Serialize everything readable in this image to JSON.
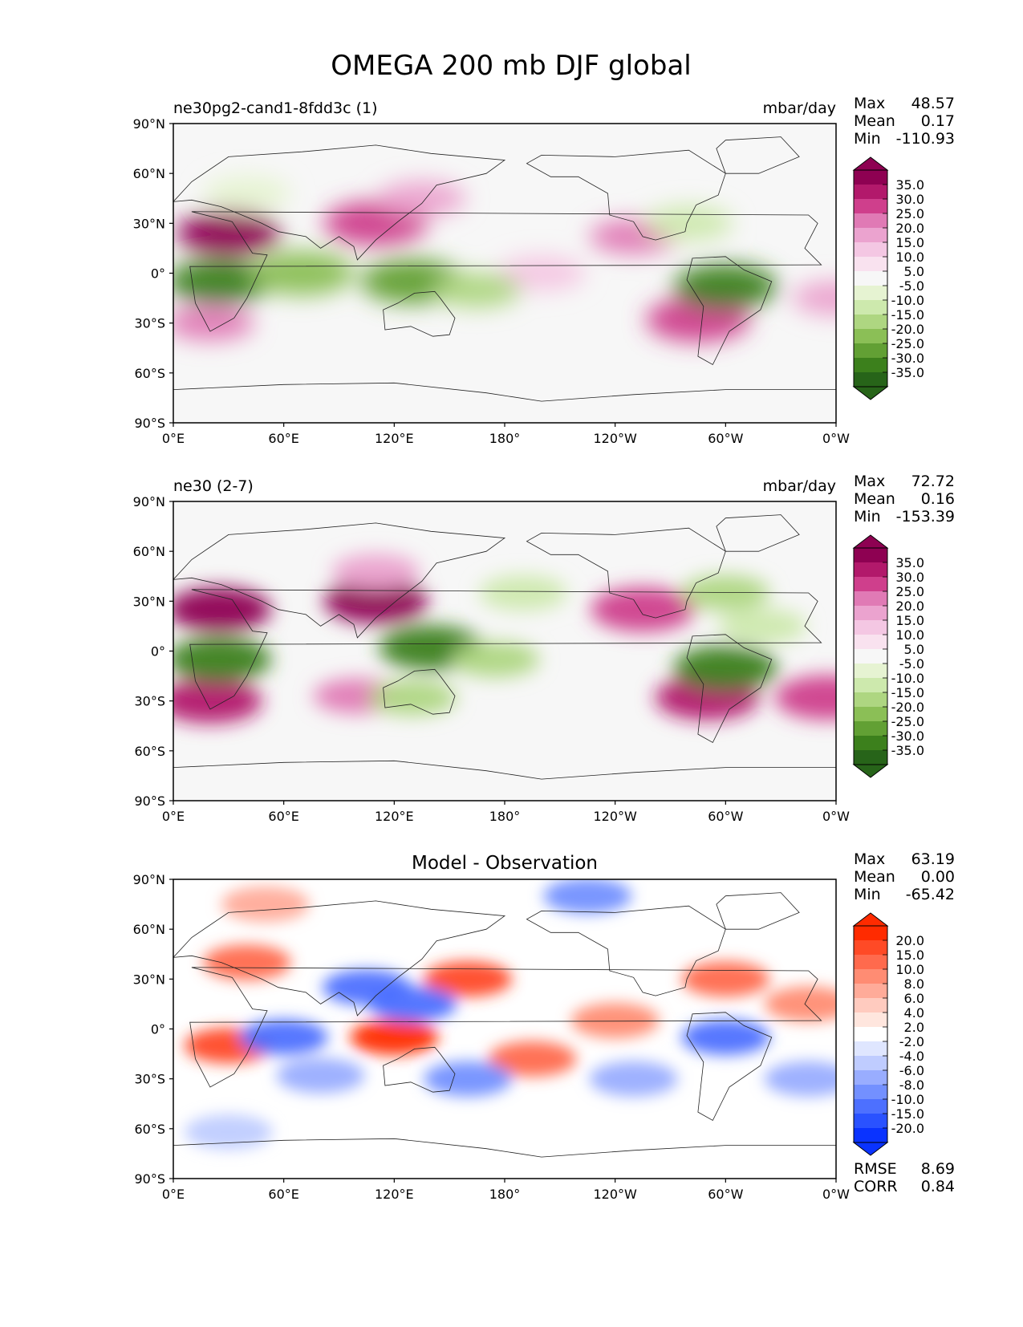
{
  "figure": {
    "title": "OMEGA 200 mb DJF global"
  },
  "chart_data": [
    {
      "type": "heatmap",
      "title": "ne30pg2-cand1-8fdd3c (1)",
      "units": "mbar/day",
      "x_ticks": [
        "0°E",
        "60°E",
        "120°E",
        "180°",
        "120°W",
        "60°W",
        "0°W"
      ],
      "y_ticks": [
        "90°N",
        "60°N",
        "30°N",
        "0°",
        "30°S",
        "60°S",
        "90°S"
      ],
      "stats": [
        {
          "label": "Max",
          "value": "48.57"
        },
        {
          "label": "Mean",
          "value": "0.17"
        },
        {
          "label": "Min",
          "value": "-110.93"
        }
      ],
      "colorbar": {
        "labels": [
          "35.0",
          "30.0",
          "25.0",
          "20.0",
          "15.0",
          "10.0",
          "5.0",
          "-5.0",
          "-10.0",
          "-15.0",
          "-20.0",
          "-25.0",
          "-30.0",
          "-35.0"
        ],
        "colors": [
          "#8e0152",
          "#b2196b",
          "#cf3f8c",
          "#e07ab5",
          "#eba3cf",
          "#f4c7e3",
          "#f9e2ef",
          "#f7f7f7",
          "#e6f3d2",
          "#cde9ad",
          "#aed681",
          "#8bbf56",
          "#62a034",
          "#3c801c",
          "#276419"
        ]
      },
      "regions": [
        {
          "lon": 30,
          "lat": 24,
          "value": 35
        },
        {
          "lon": 110,
          "lat": 30,
          "value": 25
        },
        {
          "lon": 135,
          "lat": 45,
          "value": 15
        },
        {
          "lon": 20,
          "lat": -30,
          "value": 20
        },
        {
          "lon": 285,
          "lat": -28,
          "value": 25
        },
        {
          "lon": 250,
          "lat": 22,
          "value": 20
        },
        {
          "lon": 360,
          "lat": -15,
          "value": 15
        },
        {
          "lon": 200,
          "lat": 0,
          "value": 10
        },
        {
          "lon": 25,
          "lat": -5,
          "value": -35
        },
        {
          "lon": 300,
          "lat": -8,
          "value": -35
        },
        {
          "lon": 130,
          "lat": -5,
          "value": -30
        },
        {
          "lon": 70,
          "lat": 0,
          "value": -25
        },
        {
          "lon": 165,
          "lat": -10,
          "value": -20
        },
        {
          "lon": 280,
          "lat": 30,
          "value": -15
        },
        {
          "lon": 40,
          "lat": 48,
          "value": -10
        }
      ]
    },
    {
      "type": "heatmap",
      "title": "ne30 (2-7)",
      "units": "mbar/day",
      "x_ticks": [
        "0°E",
        "60°E",
        "120°E",
        "180°",
        "120°W",
        "60°W",
        "0°W"
      ],
      "y_ticks": [
        "90°N",
        "60°N",
        "30°N",
        "0°",
        "30°S",
        "60°S",
        "90°S"
      ],
      "stats": [
        {
          "label": "Max",
          "value": "72.72"
        },
        {
          "label": "Mean",
          "value": "0.16"
        },
        {
          "label": "Min",
          "value": "-153.39"
        }
      ],
      "colorbar": {
        "labels": [
          "35.0",
          "30.0",
          "25.0",
          "20.0",
          "15.0",
          "10.0",
          "5.0",
          "-5.0",
          "-10.0",
          "-15.0",
          "-20.0",
          "-25.0",
          "-30.0",
          "-35.0"
        ],
        "colors": [
          "#8e0152",
          "#b2196b",
          "#cf3f8c",
          "#e07ab5",
          "#eba3cf",
          "#f4c7e3",
          "#f9e2ef",
          "#f7f7f7",
          "#e6f3d2",
          "#cde9ad",
          "#aed681",
          "#8bbf56",
          "#62a034",
          "#3c801c",
          "#276419"
        ]
      },
      "regions": [
        {
          "lon": 25,
          "lat": 25,
          "value": 35
        },
        {
          "lon": 110,
          "lat": 30,
          "value": 35
        },
        {
          "lon": 110,
          "lat": 48,
          "value": 15
        },
        {
          "lon": 20,
          "lat": -30,
          "value": 30
        },
        {
          "lon": 100,
          "lat": -27,
          "value": 20
        },
        {
          "lon": 290,
          "lat": -28,
          "value": 30
        },
        {
          "lon": 255,
          "lat": 25,
          "value": 25
        },
        {
          "lon": 355,
          "lat": -28,
          "value": 25
        },
        {
          "lon": 25,
          "lat": -5,
          "value": -35
        },
        {
          "lon": 300,
          "lat": -10,
          "value": -35
        },
        {
          "lon": 140,
          "lat": 2,
          "value": -35
        },
        {
          "lon": 175,
          "lat": -5,
          "value": -20
        },
        {
          "lon": 190,
          "lat": 35,
          "value": -15
        },
        {
          "lon": 300,
          "lat": 35,
          "value": -20
        },
        {
          "lon": 320,
          "lat": 15,
          "value": -15
        },
        {
          "lon": 130,
          "lat": -28,
          "value": -20
        }
      ]
    },
    {
      "type": "heatmap",
      "title": "Model - Observation",
      "units": "",
      "x_ticks": [
        "0°E",
        "60°E",
        "120°E",
        "180°",
        "120°W",
        "60°W",
        "0°W"
      ],
      "y_ticks": [
        "90°N",
        "60°N",
        "30°N",
        "0°",
        "30°S",
        "60°S",
        "90°S"
      ],
      "stats": [
        {
          "label": "Max",
          "value": "63.19"
        },
        {
          "label": "Mean",
          "value": "0.00"
        },
        {
          "label": "Min",
          "value": "-65.42"
        }
      ],
      "extra_stats": [
        {
          "label": "RMSE",
          "value": "8.69"
        },
        {
          "label": "CORR",
          "value": "0.84"
        }
      ],
      "colorbar": {
        "labels": [
          "20.0",
          "15.0",
          "10.0",
          "8.0",
          "6.0",
          "4.0",
          "2.0",
          "-2.0",
          "-4.0",
          "-6.0",
          "-8.0",
          "-10.0",
          "-15.0",
          "-20.0"
        ],
        "colors": [
          "#ff2b00",
          "#ff4a26",
          "#ff6a4d",
          "#ff8c73",
          "#ffab99",
          "#ffcbbf",
          "#ffe6de",
          "#ffffff",
          "#dfe6ff",
          "#bfccff",
          "#99adff",
          "#7390ff",
          "#4d70ff",
          "#2a52ff",
          "#0a33ff"
        ]
      },
      "regions": [
        {
          "lon": 120,
          "lat": -5,
          "value": 20
        },
        {
          "lon": 160,
          "lat": 30,
          "value": 15
        },
        {
          "lon": 40,
          "lat": 40,
          "value": 10
        },
        {
          "lon": 30,
          "lat": -10,
          "value": 15
        },
        {
          "lon": 195,
          "lat": -18,
          "value": 10
        },
        {
          "lon": 300,
          "lat": 30,
          "value": 10
        },
        {
          "lon": 345,
          "lat": 15,
          "value": 8
        },
        {
          "lon": 240,
          "lat": 5,
          "value": 8
        },
        {
          "lon": 50,
          "lat": 75,
          "value": 6
        },
        {
          "lon": 60,
          "lat": -5,
          "value": -15
        },
        {
          "lon": 105,
          "lat": 25,
          "value": -15
        },
        {
          "lon": 130,
          "lat": 15,
          "value": -15
        },
        {
          "lon": 225,
          "lat": 80,
          "value": -10
        },
        {
          "lon": 160,
          "lat": -30,
          "value": -10
        },
        {
          "lon": 300,
          "lat": -5,
          "value": -15
        },
        {
          "lon": 80,
          "lat": -28,
          "value": -8
        },
        {
          "lon": 250,
          "lat": -30,
          "value": -8
        },
        {
          "lon": 30,
          "lat": -62,
          "value": -6
        },
        {
          "lon": 345,
          "lat": -30,
          "value": -8
        }
      ]
    }
  ]
}
